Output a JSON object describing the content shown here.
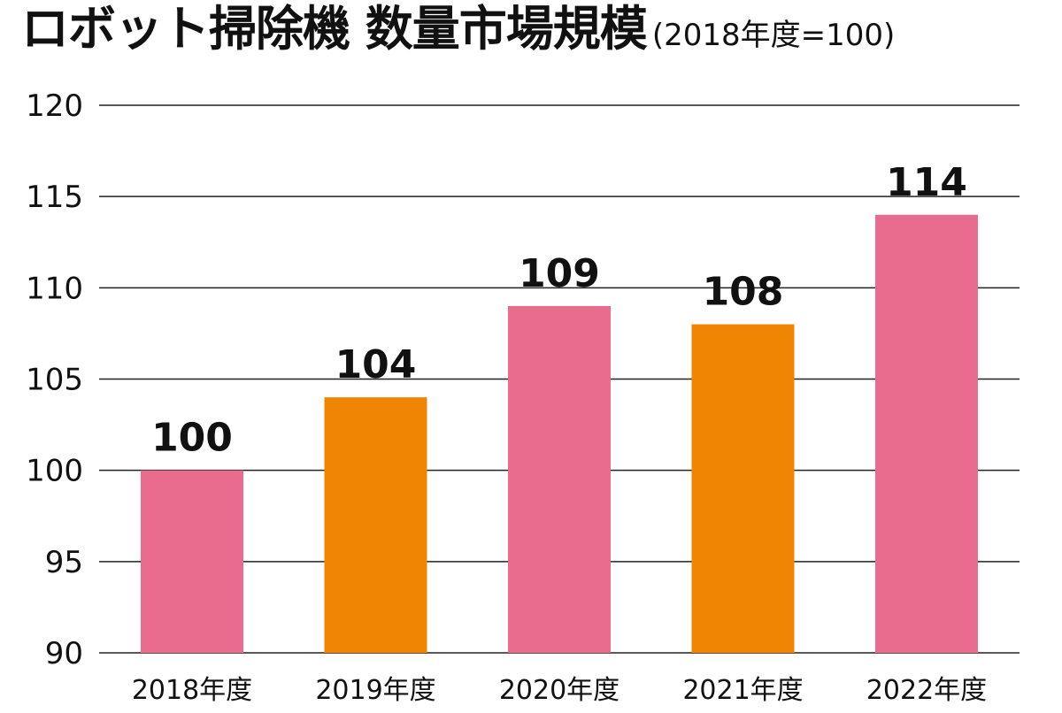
{
  "chart_data": {
    "type": "bar",
    "title": "ロボット掃除機 数量市場規模",
    "subtitle": "(2018年度=100)",
    "categories": [
      "2018年度",
      "2019年度",
      "2020年度",
      "2021年度",
      "2022年度"
    ],
    "values": [
      100,
      104,
      109,
      108,
      114
    ],
    "value_labels": [
      "100",
      "104",
      "109",
      "108",
      "114"
    ],
    "bar_colors": [
      "#e96c8f",
      "#ef8503",
      "#e96c8f",
      "#ef8503",
      "#e96c8f"
    ],
    "gridline_color": "#222222",
    "ylim": [
      90,
      120
    ],
    "yticks": [
      90,
      95,
      100,
      105,
      110,
      115,
      120
    ],
    "ytick_labels": [
      "90",
      "95",
      "100",
      "105",
      "110",
      "115",
      "120"
    ],
    "grid": true,
    "legend": "none",
    "xlabel": "",
    "ylabel": ""
  }
}
